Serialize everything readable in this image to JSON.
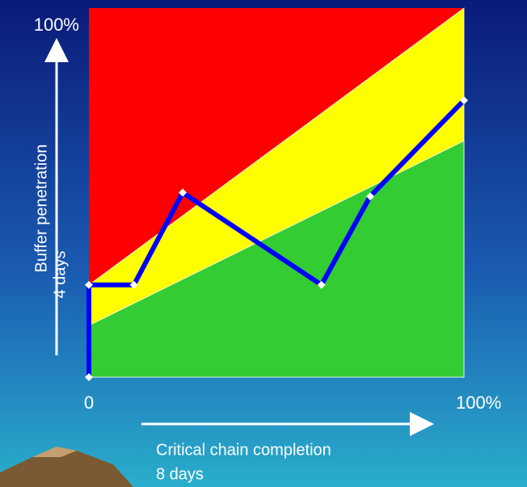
{
  "chart_data": {
    "type": "line",
    "x_label": [
      "Critical chain completion",
      "8 days"
    ],
    "y_label": [
      "Buffer penetration",
      "4 days"
    ],
    "xlim": [
      0,
      100
    ],
    "ylim": [
      0,
      100
    ],
    "xticks": [
      {
        "value": 0,
        "label": "0"
      },
      {
        "value": 100,
        "label": "100%"
      }
    ],
    "yticks": [
      {
        "value": 100,
        "label": "100%"
      }
    ],
    "zones": [
      {
        "color": "#ff0000",
        "start": [
          100,
          100
        ],
        "end": [
          100,
          100
        ]
      },
      {
        "color": "#ffff00",
        "start": [
          25,
          100
        ],
        "end": [
          25,
          100
        ]
      },
      {
        "color": "#33cc33",
        "start": [
          14,
          64
        ],
        "end": [
          14,
          64
        ]
      }
    ],
    "series": [
      {
        "color": "#0000ff",
        "marker_color": "#ffffff",
        "x": [
          0,
          0,
          12,
          25,
          62,
          75,
          100
        ],
        "values": [
          0,
          25,
          25,
          50,
          25,
          49,
          75
        ]
      }
    ]
  }
}
